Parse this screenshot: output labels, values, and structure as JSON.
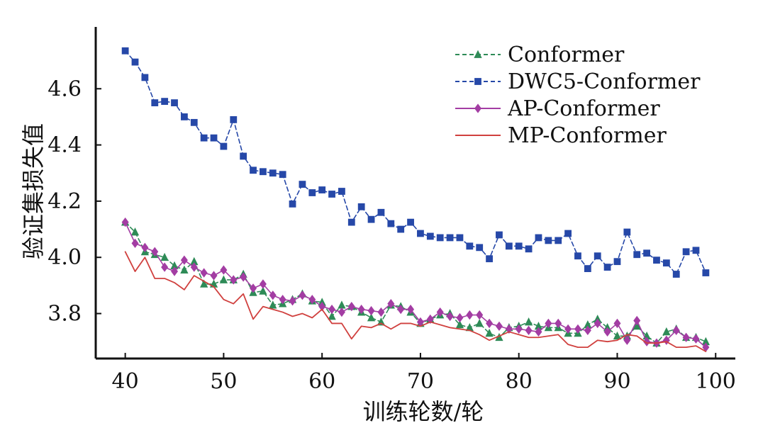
{
  "chart_data": {
    "type": "line",
    "title": "",
    "xlabel": "训练轮数/轮",
    "ylabel": "验证集损失值",
    "xlim": [
      37,
      102
    ],
    "ylim": [
      3.64,
      4.82
    ],
    "x_ticks": [
      40,
      50,
      60,
      70,
      80,
      90,
      100
    ],
    "y_ticks": [
      3.8,
      4.0,
      4.2,
      4.4,
      4.6
    ],
    "x_tick_labels": [
      "40",
      "50",
      "60",
      "70",
      "80",
      "90",
      "100"
    ],
    "y_tick_labels": [
      "3.8",
      "4.0",
      "4.2",
      "4.4",
      "4.6"
    ],
    "legend_position": "top-right",
    "grid": false,
    "x": [
      40,
      41,
      42,
      43,
      44,
      45,
      46,
      47,
      48,
      49,
      50,
      51,
      52,
      53,
      54,
      55,
      56,
      57,
      58,
      59,
      60,
      61,
      62,
      63,
      64,
      65,
      66,
      67,
      68,
      69,
      70,
      71,
      72,
      73,
      74,
      75,
      76,
      77,
      78,
      79,
      80,
      81,
      82,
      83,
      84,
      85,
      86,
      87,
      88,
      89,
      90,
      91,
      92,
      93,
      94,
      95,
      96,
      97,
      98,
      99
    ],
    "series": [
      {
        "name": "Conformer",
        "color": "#2e8b57",
        "line_style": "dashed",
        "marker": "triangle",
        "values": [
          4.125,
          4.09,
          4.02,
          4.01,
          4.0,
          3.97,
          3.955,
          3.985,
          3.905,
          3.905,
          3.92,
          3.92,
          3.94,
          3.875,
          3.88,
          3.83,
          3.835,
          3.85,
          3.87,
          3.845,
          3.84,
          3.79,
          3.83,
          3.825,
          3.805,
          3.785,
          3.77,
          3.83,
          3.825,
          3.805,
          3.765,
          3.78,
          3.795,
          3.8,
          3.76,
          3.75,
          3.765,
          3.73,
          3.715,
          3.75,
          3.755,
          3.77,
          3.755,
          3.75,
          3.75,
          3.73,
          3.73,
          3.76,
          3.78,
          3.75,
          3.72,
          3.72,
          3.755,
          3.72,
          3.695,
          3.735,
          3.745,
          3.715,
          3.715,
          3.7
        ]
      },
      {
        "name": "DWC5-Conformer",
        "color": "#2648a8",
        "line_style": "dashed",
        "marker": "square",
        "values": [
          4.735,
          4.695,
          4.64,
          4.55,
          4.555,
          4.55,
          4.5,
          4.48,
          4.425,
          4.425,
          4.395,
          4.49,
          4.36,
          4.31,
          4.305,
          4.3,
          4.295,
          4.19,
          4.26,
          4.23,
          4.24,
          4.225,
          4.235,
          4.125,
          4.18,
          4.135,
          4.16,
          4.12,
          4.1,
          4.125,
          4.085,
          4.075,
          4.07,
          4.07,
          4.07,
          4.04,
          4.035,
          3.995,
          4.08,
          4.04,
          4.04,
          4.03,
          4.07,
          4.06,
          4.06,
          4.085,
          4.005,
          3.96,
          4.005,
          3.965,
          3.985,
          4.09,
          4.01,
          4.015,
          3.99,
          3.98,
          3.94,
          4.02,
          4.025,
          3.945
        ]
      },
      {
        "name": "AP-Conformer",
        "color": "#a33da3",
        "line_style": "solid",
        "marker": "diamond",
        "values": [
          4.125,
          4.05,
          4.035,
          4.02,
          3.965,
          3.95,
          3.99,
          3.965,
          3.945,
          3.935,
          3.955,
          3.92,
          3.93,
          3.89,
          3.905,
          3.865,
          3.85,
          3.845,
          3.865,
          3.85,
          3.825,
          3.815,
          3.805,
          3.825,
          3.815,
          3.81,
          3.805,
          3.835,
          3.815,
          3.815,
          3.77,
          3.78,
          3.805,
          3.79,
          3.785,
          3.795,
          3.795,
          3.765,
          3.755,
          3.745,
          3.745,
          3.74,
          3.735,
          3.765,
          3.765,
          3.745,
          3.745,
          3.74,
          3.765,
          3.735,
          3.765,
          3.705,
          3.775,
          3.7,
          3.695,
          3.705,
          3.74,
          3.715,
          3.71,
          3.68
        ]
      },
      {
        "name": "MP-Conformer",
        "color": "#d0403e",
        "line_style": "solid",
        "marker": "none",
        "values": [
          4.02,
          3.95,
          4.0,
          3.925,
          3.925,
          3.91,
          3.885,
          3.935,
          3.915,
          3.895,
          3.85,
          3.835,
          3.87,
          3.78,
          3.825,
          3.815,
          3.805,
          3.79,
          3.8,
          3.785,
          3.815,
          3.765,
          3.765,
          3.71,
          3.755,
          3.75,
          3.765,
          3.745,
          3.765,
          3.765,
          3.755,
          3.77,
          3.76,
          3.75,
          3.745,
          3.74,
          3.725,
          3.705,
          3.72,
          3.735,
          3.725,
          3.715,
          3.715,
          3.72,
          3.725,
          3.69,
          3.68,
          3.68,
          3.705,
          3.7,
          3.705,
          3.725,
          3.72,
          3.695,
          3.695,
          3.7,
          3.68,
          3.68,
          3.685,
          3.665
        ]
      }
    ]
  }
}
